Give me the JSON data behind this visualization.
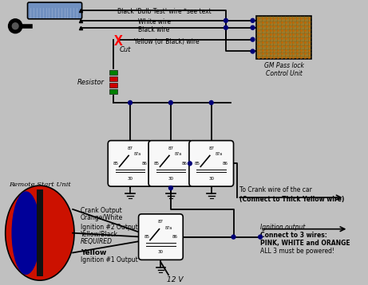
{
  "bg_color": "#c0c0c0",
  "labels": {
    "black_bulb_wire": "Black 'Bulb Test' wire *see text",
    "white_wire": "White wire",
    "black_wire": "Black wire",
    "yellow_wire": "Yellow (or Black) wire",
    "cut": "Cut",
    "resistor": "Resistor",
    "gm_passlock": "GM Pass lock",
    "control_unit": "Control Unit",
    "remote_start": "Remote Start Unit",
    "crank_output_1": "Crank Output",
    "crank_output_2": "Orange/White",
    "ign2_1": "Ignition #2 Output",
    "ign2_2": "Yellow/Black",
    "ign2_3": "REQUIRED",
    "yellow_1": "Yellow",
    "yellow_2": "Ignition #1 Output",
    "to_crank": "To Crank wire of the car",
    "connect_thick": "(Connect to Thick Yellow wire)",
    "ign_out_title": "Ignition output",
    "ign_out_1": "Connect to 3 wires:",
    "ign_out_2": "PINK, WHITE and ORANGE",
    "ign_out_3": "ALL 3 must be powered!",
    "twelve_v": "12 V"
  },
  "colors": {
    "bg": "#c0c0c0",
    "relay_face": "#f8f8f8",
    "gm_box": "#9B7A2A",
    "cut_x": "#ff0000",
    "remote_red": "#cc1100",
    "remote_blue": "#000099",
    "resistor_green": "#008000",
    "resistor_red": "#cc0000",
    "cylinder_blue": "#7090c0"
  }
}
